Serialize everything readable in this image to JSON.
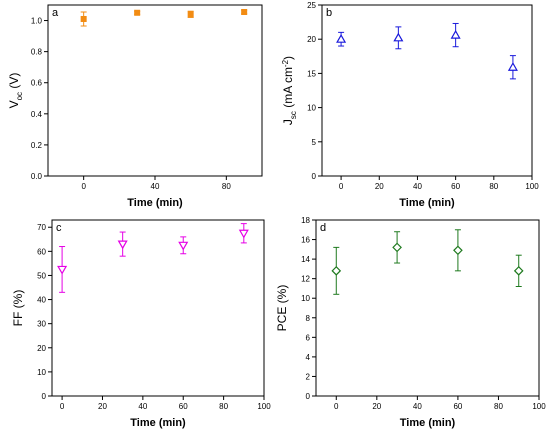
{
  "chart_data": [
    {
      "id": "a",
      "type": "scatter",
      "panel_label": "a",
      "marker": "square",
      "color": "#f28c13",
      "xlabel": "Time (min)",
      "ylabel_main": "V",
      "ylabel_sub": "oc",
      "ylabel_unit": " (V)",
      "xlim": [
        -20,
        100
      ],
      "ylim": [
        0.0,
        1.1
      ],
      "xticks": [
        "0",
        "40",
        "80"
      ],
      "xtick_values": [
        0,
        40,
        80
      ],
      "yticks": [
        "0.0",
        "0.2",
        "0.4",
        "0.6",
        "0.8",
        "1.0"
      ],
      "ytick_values": [
        0.0,
        0.2,
        0.4,
        0.6,
        0.8,
        1.0
      ],
      "x": [
        0,
        30,
        60,
        90
      ],
      "y": [
        1.01,
        1.05,
        1.04,
        1.055
      ],
      "err": [
        0.045,
        0.01,
        0.02,
        0.012
      ]
    },
    {
      "id": "b",
      "type": "scatter",
      "panel_label": "b",
      "marker": "triangle-up",
      "color": "#1a1adc",
      "xlabel": "Time (min)",
      "ylabel_main": "J",
      "ylabel_sub": "sc",
      "ylabel_unit": " (mA cm",
      "ylabel_sup": "-2",
      "ylabel_close": ")",
      "xlim": [
        -10,
        100
      ],
      "ylim": [
        0,
        25
      ],
      "xticks": [
        "0",
        "20",
        "40",
        "60",
        "80",
        "100"
      ],
      "xtick_values": [
        0,
        20,
        40,
        60,
        80,
        100
      ],
      "yticks": [
        "0",
        "5",
        "10",
        "15",
        "20",
        "25"
      ],
      "ytick_values": [
        0,
        5,
        10,
        15,
        20,
        25
      ],
      "x": [
        0,
        30,
        60,
        90
      ],
      "y": [
        20.0,
        20.2,
        20.6,
        15.9
      ],
      "err": [
        1.0,
        1.6,
        1.7,
        1.7
      ]
    },
    {
      "id": "c",
      "type": "scatter",
      "panel_label": "c",
      "marker": "triangle-down",
      "color": "#e600e6",
      "xlabel": "Time (min)",
      "ylabel_main": "FF (%)",
      "xlim": [
        -5,
        100
      ],
      "ylim": [
        0,
        73
      ],
      "xticks": [
        "0",
        "20",
        "40",
        "60",
        "80",
        "100"
      ],
      "xtick_values": [
        0,
        20,
        40,
        60,
        80,
        100
      ],
      "yticks": [
        "0",
        "10",
        "20",
        "30",
        "40",
        "50",
        "60",
        "70"
      ],
      "ytick_values": [
        0,
        10,
        20,
        30,
        40,
        50,
        60,
        70
      ],
      "x": [
        0,
        30,
        60,
        90
      ],
      "y": [
        52.5,
        63.0,
        62.5,
        67.5
      ],
      "err": [
        9.5,
        5.0,
        3.5,
        4.0
      ]
    },
    {
      "id": "d",
      "type": "scatter",
      "panel_label": "d",
      "marker": "diamond",
      "color": "#1f7a1f",
      "xlabel": "Time (min)",
      "ylabel_main": "PCE (%)",
      "xlim": [
        -10,
        100
      ],
      "ylim": [
        0,
        18
      ],
      "xticks": [
        "0",
        "20",
        "40",
        "60",
        "80",
        "100"
      ],
      "xtick_values": [
        0,
        20,
        40,
        60,
        80,
        100
      ],
      "yticks": [
        "0",
        "2",
        "4",
        "6",
        "8",
        "10",
        "12",
        "14",
        "16",
        "18"
      ],
      "ytick_values": [
        0,
        2,
        4,
        6,
        8,
        10,
        12,
        14,
        16,
        18
      ],
      "x": [
        0,
        30,
        60,
        90
      ],
      "y": [
        12.8,
        15.2,
        14.9,
        12.8
      ],
      "err": [
        2.4,
        1.6,
        2.1,
        1.6
      ]
    }
  ]
}
